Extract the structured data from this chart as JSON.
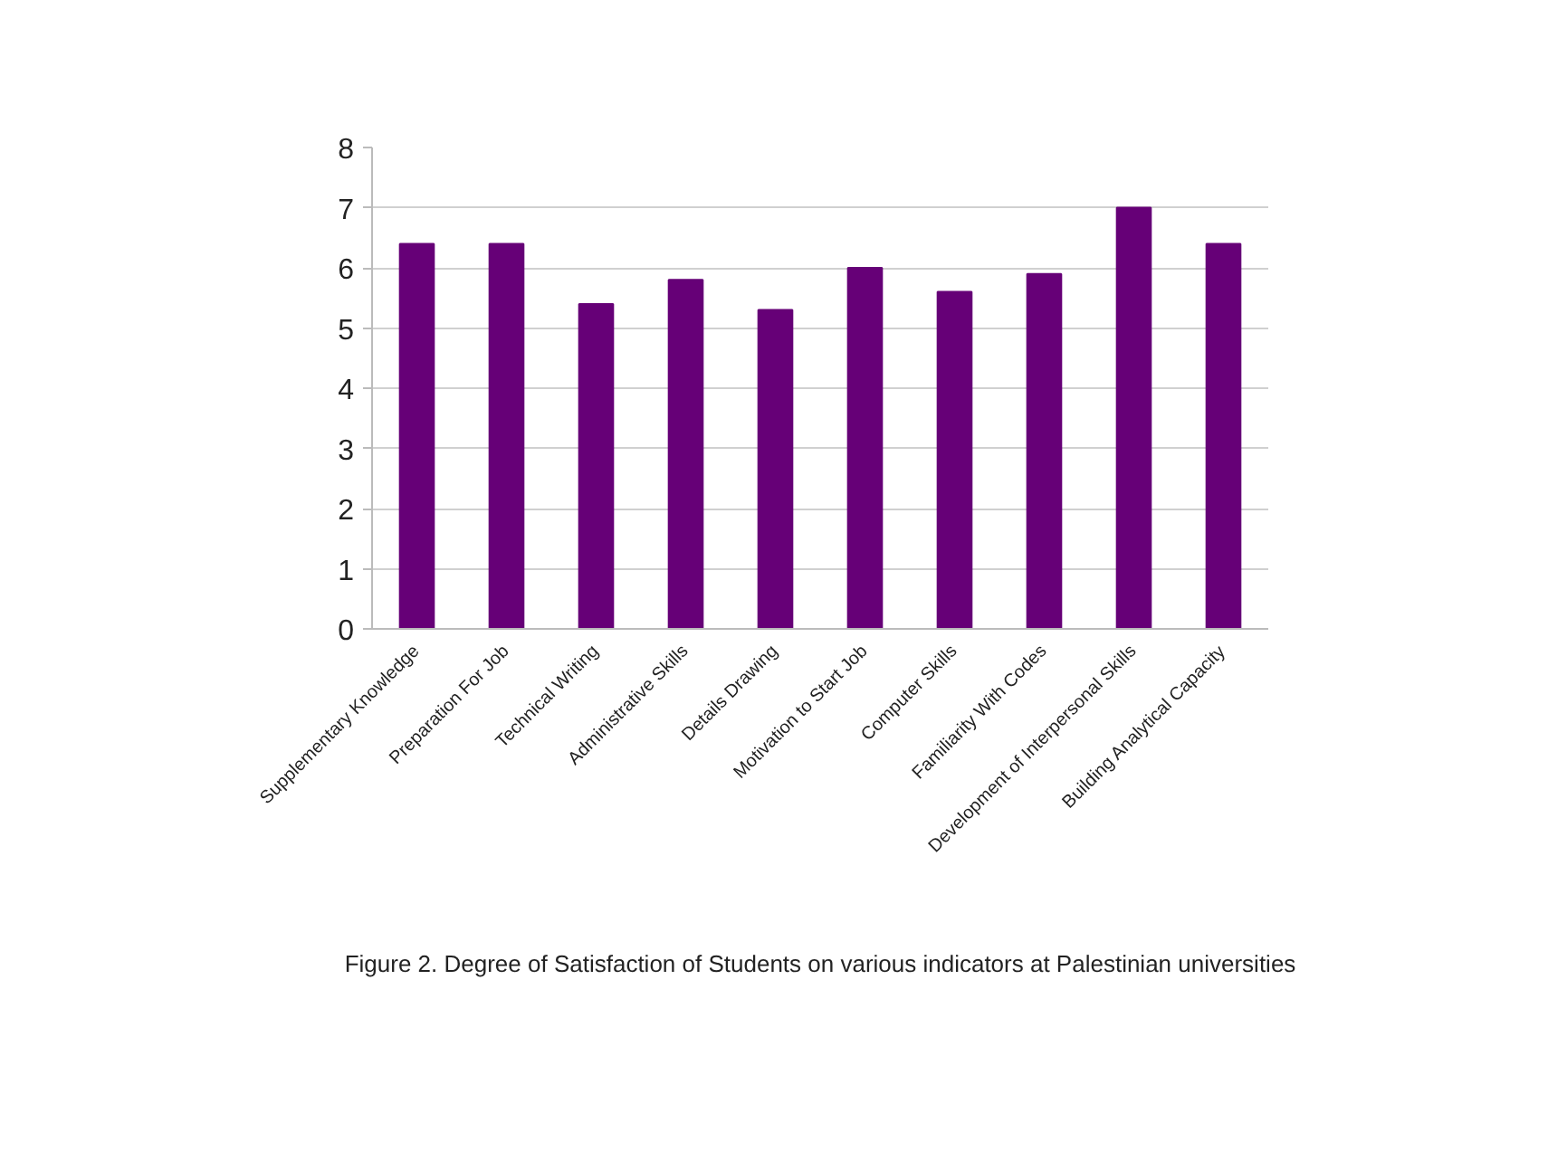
{
  "chart_data": {
    "type": "bar",
    "categories": [
      "Supplementary Knowledge",
      "Preparation For Job",
      "Technical Writing",
      "Administrative Skills",
      "Details Drawing",
      "Motivation to Start Job",
      "Computer Skills",
      "Familiarity With Codes",
      "Development of Interpersonal Skills",
      "Building Analytical Capacity"
    ],
    "values": [
      6.4,
      6.4,
      5.4,
      5.8,
      5.3,
      6.0,
      5.6,
      5.9,
      7.0,
      6.4
    ],
    "color": "#660077",
    "ylim": [
      0,
      8
    ],
    "yticks": [
      0,
      1,
      2,
      3,
      4,
      5,
      6,
      7,
      8
    ],
    "grid": "y",
    "annotations": [
      "Figure 2. Degree of Satisfaction of Students on various indicators at Palestinian universities"
    ]
  }
}
